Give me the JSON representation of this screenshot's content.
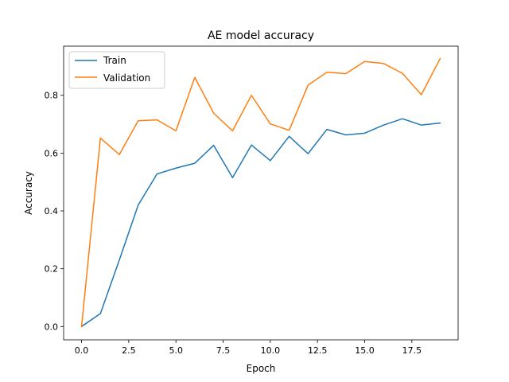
{
  "chart_data": {
    "type": "line",
    "title": "AE model accuracy",
    "xlabel": "Epoch",
    "ylabel": "Accuracy",
    "xlim": [
      -0.95,
      19.95
    ],
    "ylim": [
      -0.046,
      0.97
    ],
    "xticks": [
      0.0,
      2.5,
      5.0,
      7.5,
      10.0,
      12.5,
      15.0,
      17.5
    ],
    "xtick_labels": [
      "0.0",
      "2.5",
      "5.0",
      "7.5",
      "10.0",
      "12.5",
      "15.0",
      "17.5"
    ],
    "yticks": [
      0.0,
      0.2,
      0.4,
      0.6,
      0.8
    ],
    "ytick_labels": [
      "0.0",
      "0.2",
      "0.4",
      "0.6",
      "0.8"
    ],
    "grid": false,
    "legend_position": "upper-left",
    "x": [
      0,
      1,
      2,
      3,
      4,
      5,
      6,
      7,
      8,
      9,
      10,
      11,
      12,
      13,
      14,
      15,
      16,
      17,
      18,
      19
    ],
    "series": [
      {
        "name": "Train",
        "color": "#1f77b4",
        "values": [
          0.0,
          0.045,
          0.23,
          0.42,
          0.528,
          0.548,
          0.565,
          0.627,
          0.515,
          0.628,
          0.574,
          0.658,
          0.598,
          0.682,
          0.663,
          0.669,
          0.697,
          0.719,
          0.697,
          0.704
        ]
      },
      {
        "name": "Validation",
        "color": "#ff7f0e",
        "values": [
          0.0,
          0.652,
          0.595,
          0.712,
          0.715,
          0.677,
          0.862,
          0.738,
          0.677,
          0.8,
          0.701,
          0.679,
          0.835,
          0.88,
          0.875,
          0.917,
          0.91,
          0.876,
          0.802,
          0.927
        ]
      }
    ]
  }
}
